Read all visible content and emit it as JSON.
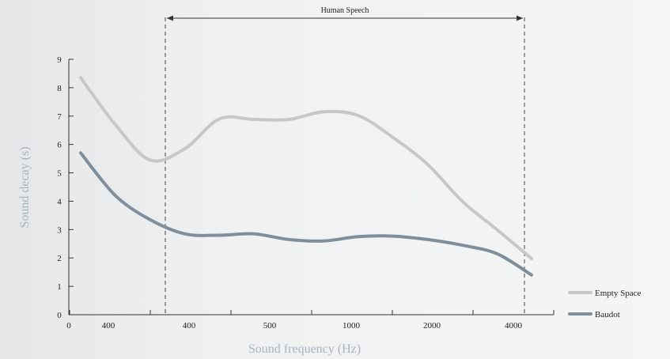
{
  "chart_data": {
    "type": "line",
    "title": "",
    "xlabel": "Sound frequency (Hz)",
    "ylabel": "Sound decay (s)",
    "ylim": [
      0,
      9
    ],
    "y_ticks": [
      "0",
      "1",
      "2",
      "3",
      "4",
      "5",
      "6",
      "7",
      "8",
      "9"
    ],
    "x_tick_labels": [
      "0",
      "400",
      "400",
      "500",
      "1000",
      "2000",
      "4000"
    ],
    "grid": false,
    "legend_position": "bottom-right",
    "region_annotation": {
      "label": "Human Speech"
    },
    "series": [
      {
        "name": "Empty Space",
        "color": "#c5c7c9",
        "values": [
          8.35,
          6.7,
          5.45,
          5.85,
          6.9,
          6.88,
          6.88,
          7.15,
          7.02,
          6.25,
          5.3,
          4.0,
          3.0,
          1.98
        ]
      },
      {
        "name": "Baudot",
        "color": "#7e8e9a",
        "values": [
          5.7,
          4.2,
          3.35,
          2.85,
          2.8,
          2.85,
          2.65,
          2.6,
          2.75,
          2.77,
          2.65,
          2.45,
          2.15,
          1.4
        ]
      }
    ]
  }
}
